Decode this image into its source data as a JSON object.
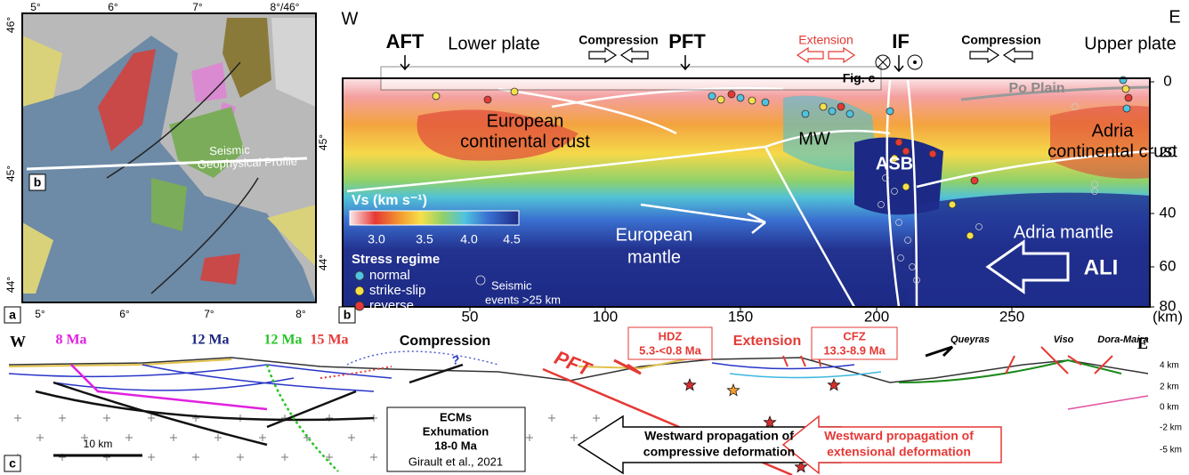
{
  "panel_a": {
    "label": "a",
    "top_lon": [
      "5°",
      "6°",
      "7°",
      "8°/46°"
    ],
    "bottom_lon": [
      "5°",
      "6°",
      "7°",
      "8°"
    ],
    "left_lat": [
      "46°",
      "45°",
      "44°"
    ],
    "right_lat": [
      "45°",
      "44°"
    ],
    "profile_marker": "b",
    "profile_label": [
      "Seismic",
      "Geophysical Profile"
    ]
  },
  "panel_b": {
    "label": "b",
    "west": "W",
    "east": "E",
    "top_labels": {
      "aft": "AFT",
      "lower_plate": "Lower plate",
      "compression_left": "Compression",
      "pft": "PFT",
      "extension": "Extension",
      "if": "IF",
      "compression_right": "Compression",
      "upper_plate": "Upper plate"
    },
    "fig_c": "Fig. c",
    "po_plain": "Po Plain",
    "regions": {
      "european_crust": [
        "European",
        "continental crust"
      ],
      "mw": "MW",
      "asb": "ASB",
      "adria_crust": [
        "Adria",
        "continental crust"
      ],
      "european_mantle": [
        "European",
        "mantle"
      ],
      "adria_mantle": "Adria mantle",
      "ali": "ALI"
    },
    "colorbar": {
      "title": "Vs (km s⁻¹)",
      "ticks": [
        "3.0",
        "3.5",
        "4.0",
        "4.5"
      ]
    },
    "legend": {
      "title": "Stress regime",
      "items": [
        "normal",
        "strike-slip",
        "reverse"
      ],
      "deep_events": [
        "Seismic",
        "events >25 km"
      ]
    },
    "x_ticks": [
      "50",
      "100",
      "150",
      "200",
      "250"
    ],
    "x_unit": "(km)",
    "depth_ticks": [
      "0",
      "20",
      "40",
      "60",
      "80"
    ]
  },
  "panel_c": {
    "label": "c",
    "west": "W",
    "east": "E",
    "ages": [
      "8 Ma",
      "12 Ma",
      "12 Ma",
      "15 Ma"
    ],
    "compression": "Compression",
    "question": "?",
    "pft": "PFT",
    "hdz": [
      "HDZ",
      "5.3-<0.8 Ma"
    ],
    "extension": "Extension",
    "cfz": [
      "CFZ",
      "13.3-8.9 Ma"
    ],
    "places": [
      "Queyras",
      "Viso",
      "Dora-Maira"
    ],
    "elevation_ticks": [
      "4 km",
      "2 km",
      "0 km",
      "-2 km",
      "-5 km"
    ],
    "scale": "10 km",
    "ecms": [
      "ECMs",
      "Exhumation",
      "18-0 Ma",
      "Girault et al., 2021"
    ],
    "compressive_arrow": [
      "Westward propagation of",
      "compressive deformation"
    ],
    "extensional_arrow": [
      "Westward propagation of",
      "extensional deformation"
    ]
  }
}
